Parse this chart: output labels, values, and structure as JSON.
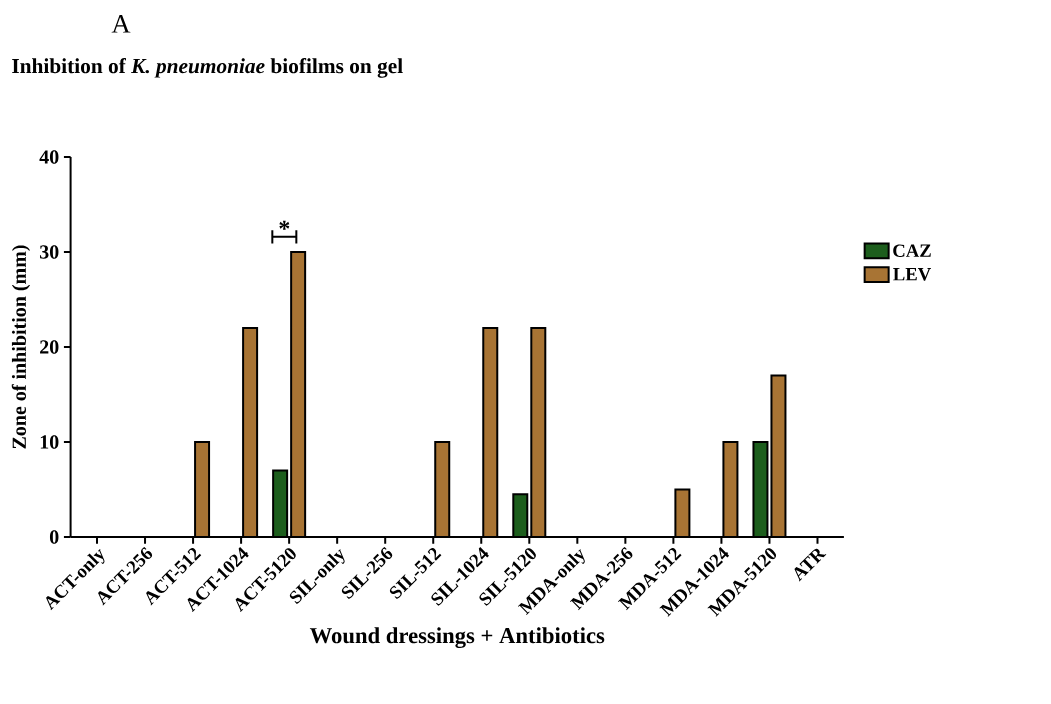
{
  "chart_data": {
    "type": "bar",
    "title": "Inhibition of *K. pneumoniae* biofilms on gel",
    "xlabel": "Wound dressings + Antibiotics",
    "ylabel": "Zone of inhibition (mm)",
    "categories": [
      "ACT-only",
      "ACT-256",
      "ACT-512",
      "ACT-1024",
      "ACT-5120",
      "SIL-only",
      "SIL-256",
      "SIL-512",
      "SIL-1024",
      "SIL-5120",
      "MDA-only",
      "MDA-256",
      "MDA-512",
      "MDA-1024",
      "MDA-5120",
      "ATR"
    ],
    "series": [
      {
        "name": "CAZ",
        "color": "#1d5e1d",
        "values": [
          0,
          0,
          0,
          0,
          7,
          0,
          0,
          0,
          0,
          4.5,
          0,
          0,
          0,
          0,
          10,
          0
        ]
      },
      {
        "name": "LEV",
        "color": "#a87434",
        "values": [
          0,
          0,
          10,
          22,
          30,
          0,
          0,
          10,
          22,
          22,
          0,
          0,
          5,
          10,
          17,
          0
        ]
      }
    ],
    "ylim": [
      0,
      40
    ],
    "yticks": [
      0,
      10,
      20,
      30,
      40
    ],
    "grid": false,
    "legend": "right",
    "annotations": [
      "A",
      "*"
    ]
  }
}
